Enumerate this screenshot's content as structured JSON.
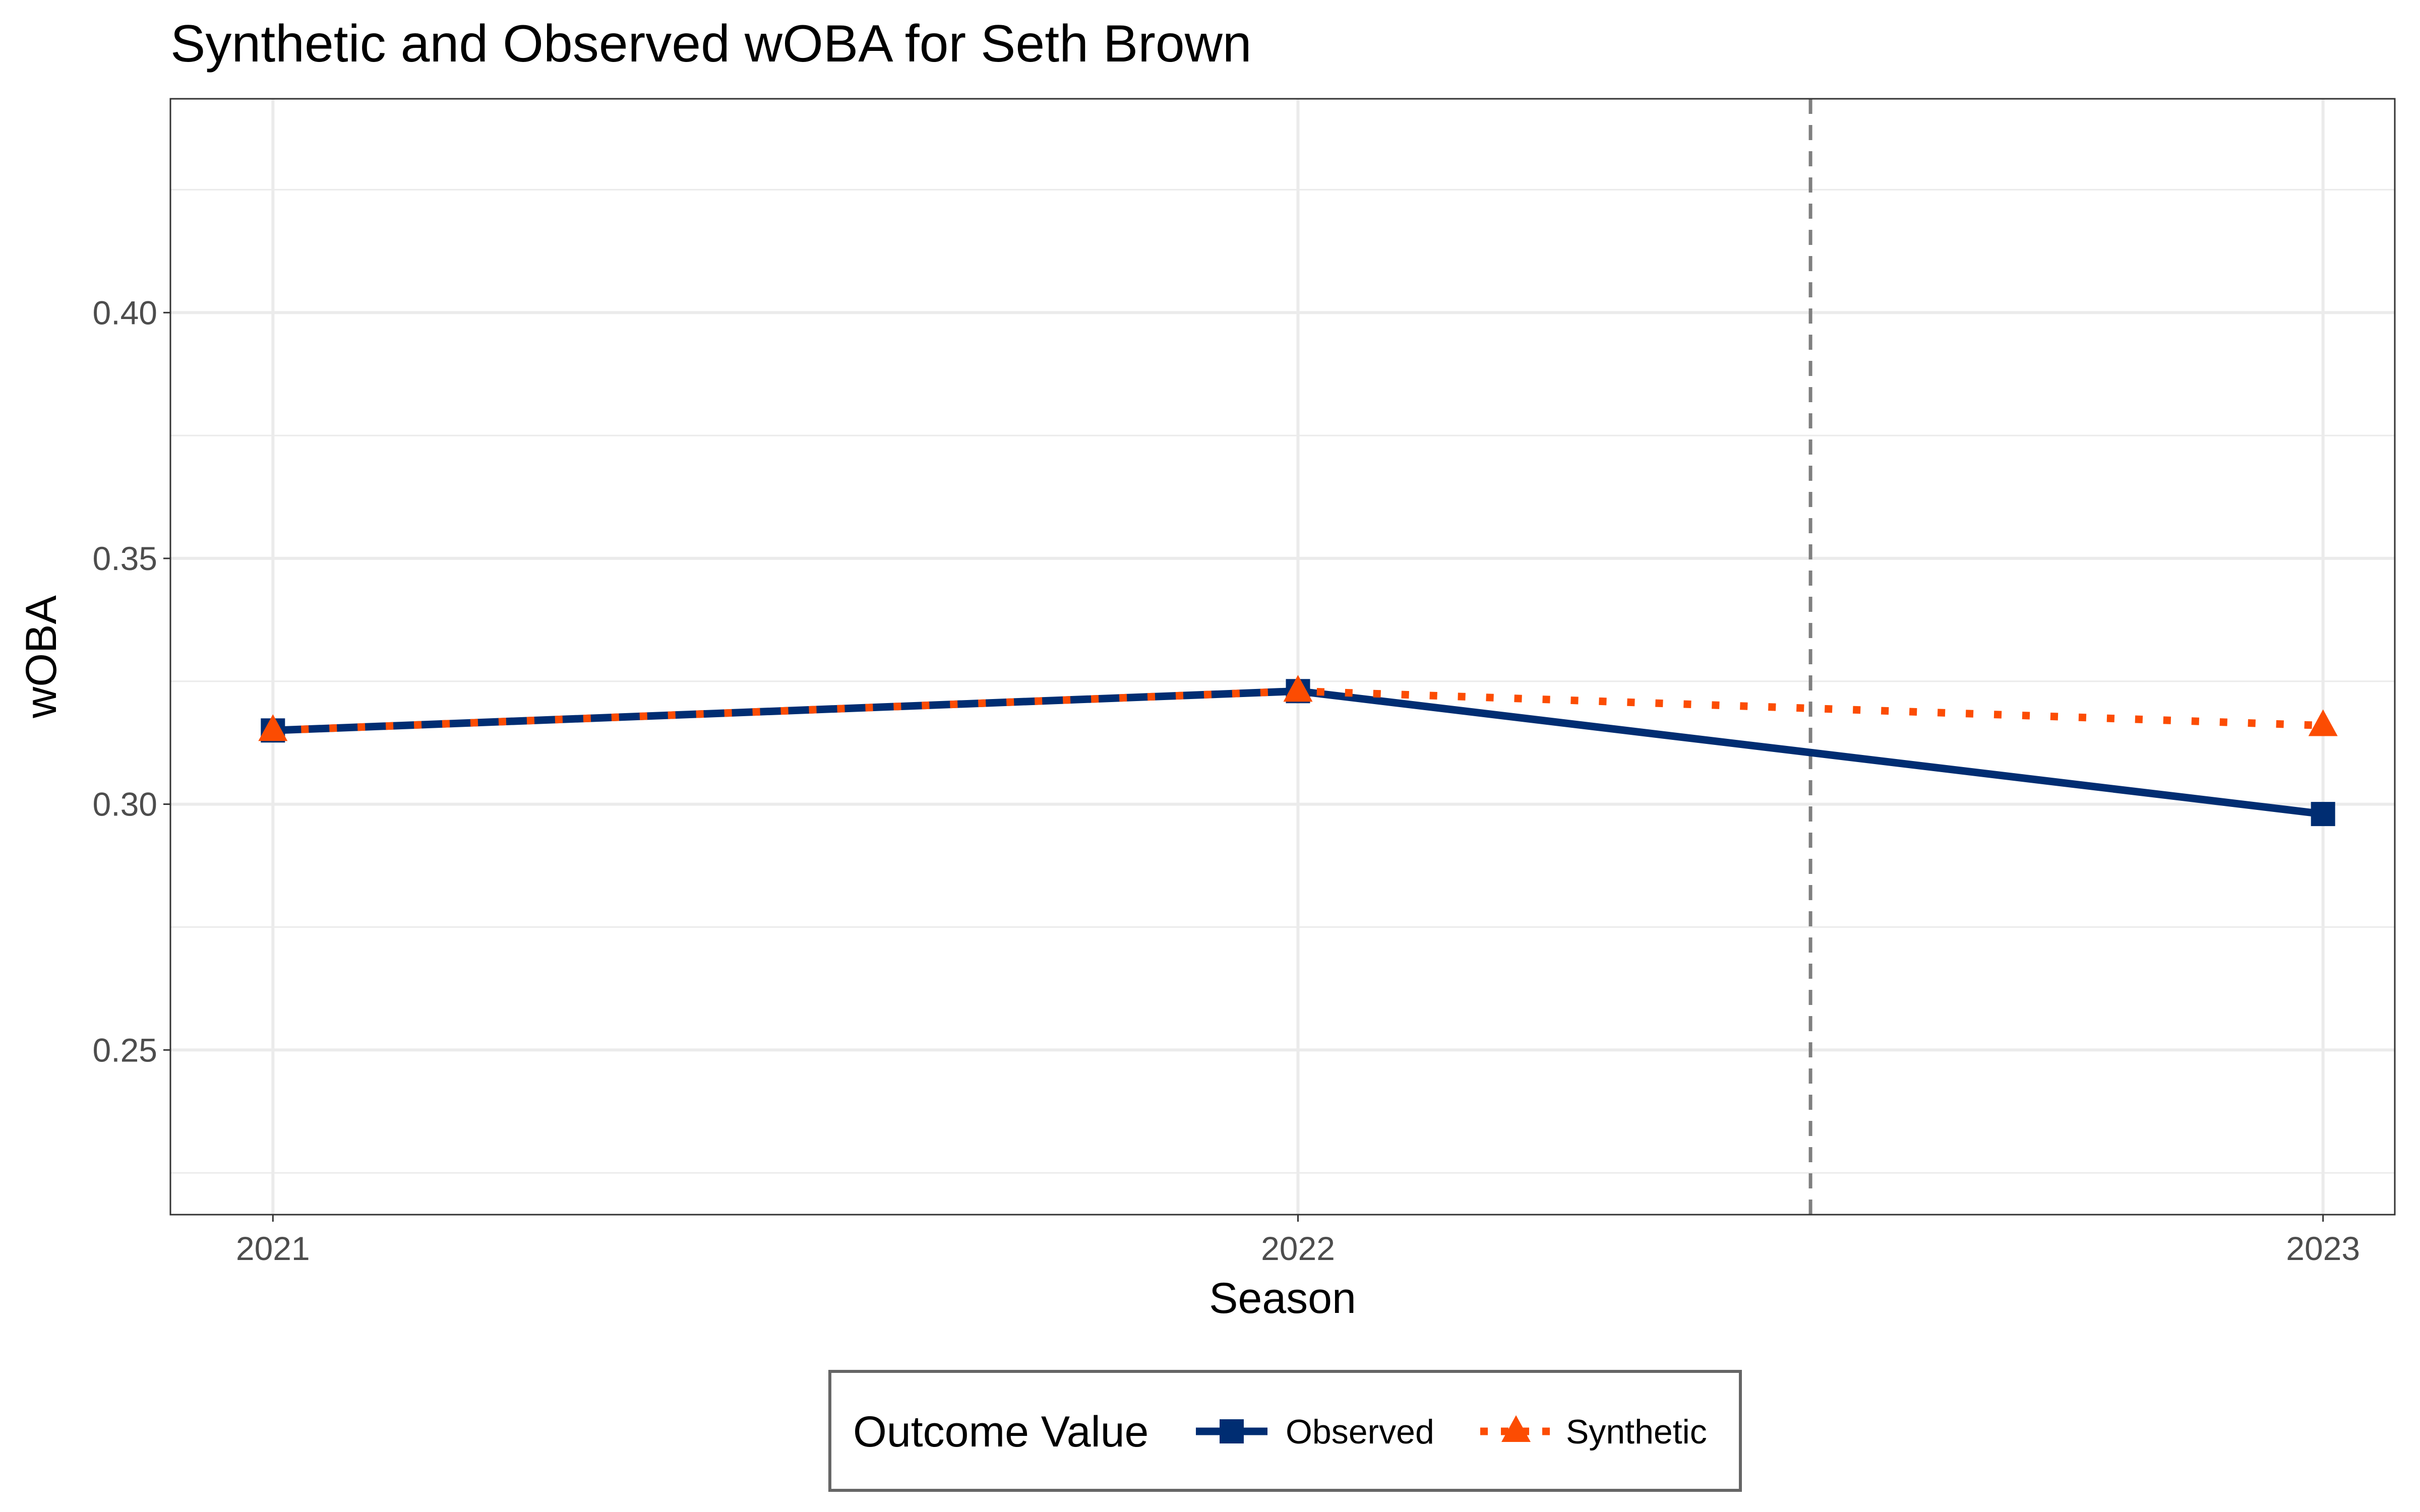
{
  "chart_data": {
    "type": "line",
    "title": "Synthetic and Observed wOBA for Seth Brown",
    "xlabel": "Season",
    "ylabel": "wOBA",
    "x": [
      2021,
      2022,
      2023
    ],
    "x_tick_labels": [
      "2021",
      "2022",
      "2023"
    ],
    "y_ticks": [
      0.25,
      0.3,
      0.35,
      0.4
    ],
    "y_tick_labels": [
      "0.25",
      "0.30",
      "0.35",
      "0.40"
    ],
    "xlim": [
      2020.9,
      2023.07
    ],
    "ylim": [
      0.2165,
      0.4435
    ],
    "treatment_line_x": 2022.5,
    "grid": true,
    "series": [
      {
        "name": "Observed",
        "values": [
          0.315,
          0.323,
          0.298
        ],
        "color": "#002d72",
        "line_style": "solid",
        "marker": "square"
      },
      {
        "name": "Synthetic",
        "values": [
          0.315,
          0.323,
          0.316
        ],
        "color": "#fc4c02",
        "line_style": "dotted",
        "marker": "triangle"
      }
    ],
    "legend": {
      "title": "Outcome Value",
      "position": "bottom"
    }
  }
}
